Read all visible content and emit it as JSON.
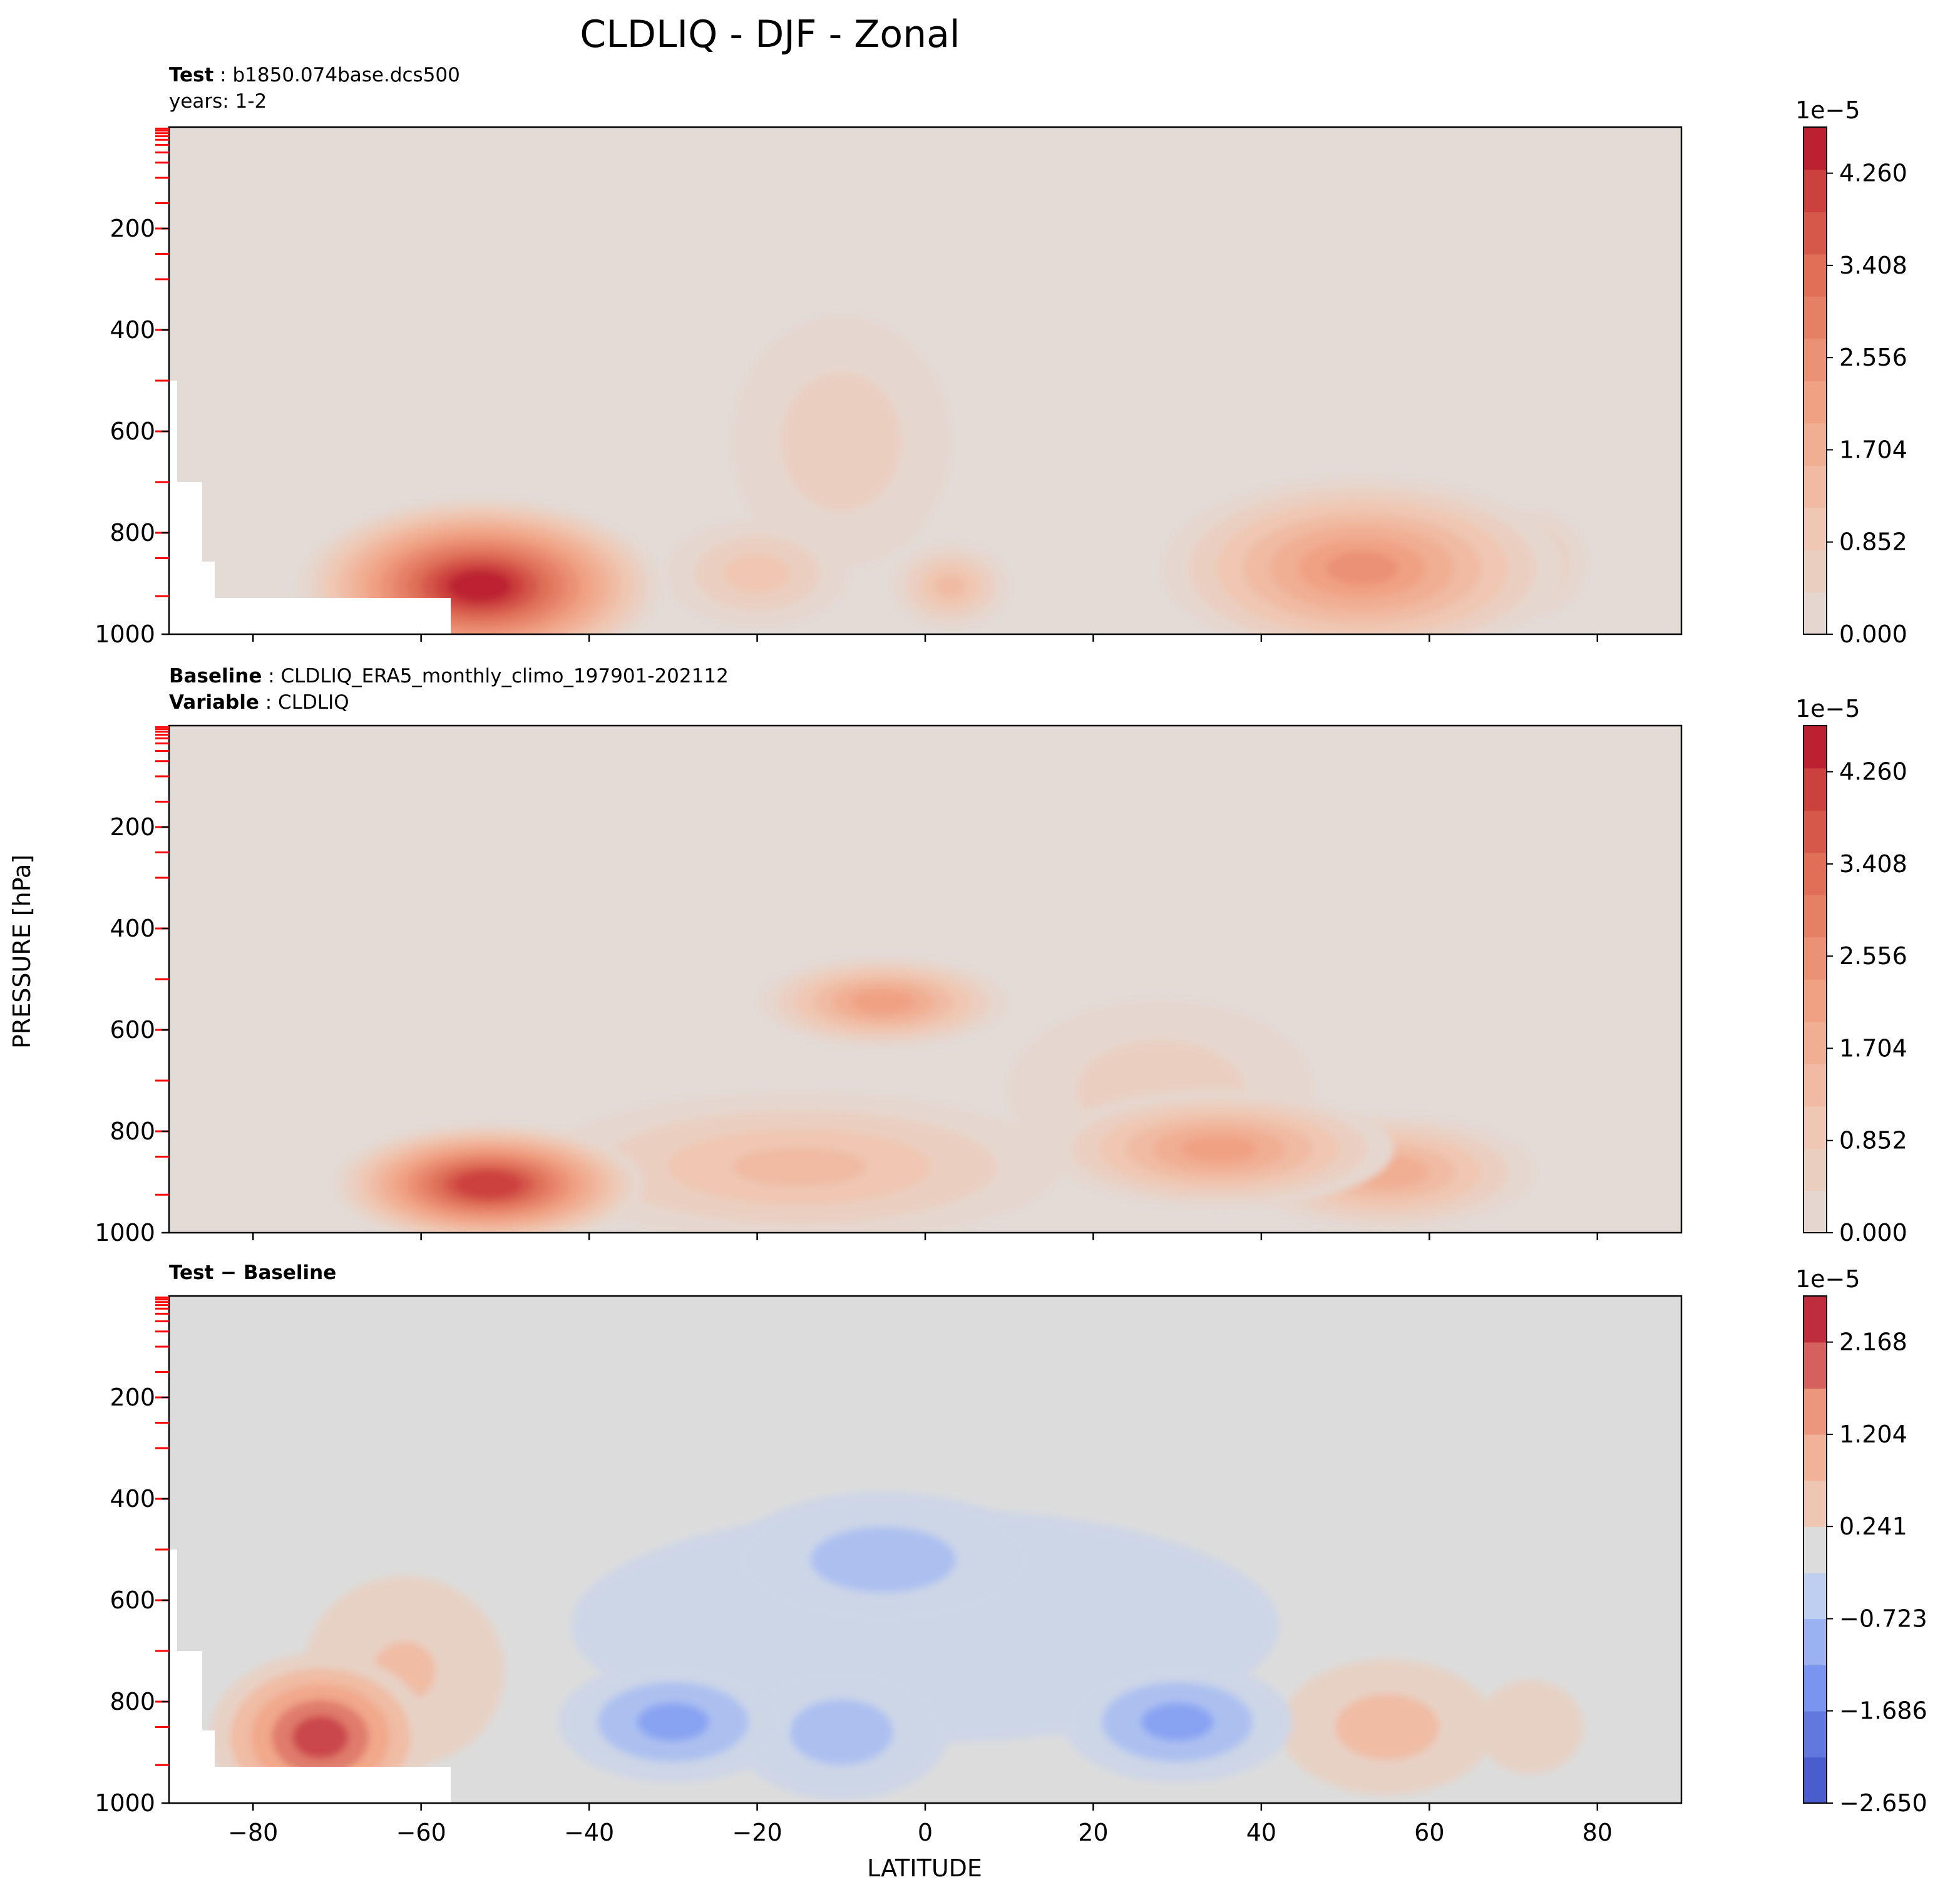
{
  "figure_title": "CLDLIQ - DJF - Zonal",
  "chart_data": [
    {
      "type": "heatmap",
      "panel": "test",
      "header_lines": [
        {
          "bold": "Test",
          "text": "b1850.074base.dcs500"
        },
        {
          "bold": "",
          "text": "years: 1-2"
        }
      ],
      "xlim": [
        -90,
        90
      ],
      "ylim": [
        1000,
        0
      ],
      "y_ticks": [
        200,
        400,
        600,
        800,
        1000
      ],
      "colorbar": {
        "exponent": "1e−5",
        "min": 0.0,
        "max": 4.686,
        "levels": 12,
        "tick_labels": [
          "4.260",
          "3.408",
          "2.556",
          "1.704",
          "0.852",
          "0.000"
        ],
        "tick_values": [
          4.26,
          3.408,
          2.556,
          1.704,
          0.852,
          0.0
        ]
      },
      "features": [
        {
          "lat": -53,
          "p": 905,
          "value": 4.6,
          "wlat": 14,
          "wp": 130
        },
        {
          "lat": 52,
          "p": 870,
          "value": 2.6,
          "wlat": 16,
          "wp": 140
        },
        {
          "lat": 3,
          "p": 905,
          "value": 1.5,
          "wlat": 5,
          "wp": 70
        },
        {
          "lat": -20,
          "p": 880,
          "value": 1.2,
          "wlat": 8,
          "wp": 90
        },
        {
          "lat": 72,
          "p": 860,
          "value": 1.2,
          "wlat": 5,
          "wp": 90
        },
        {
          "lat": -10,
          "p": 620,
          "value": 0.9,
          "wlat": 10,
          "wp": 220
        }
      ]
    },
    {
      "type": "heatmap",
      "panel": "baseline",
      "header_lines": [
        {
          "bold": "Baseline",
          "text": "CLDLIQ_ERA5_monthly_climo_197901-202112"
        },
        {
          "bold": "Variable",
          "text": "CLDLIQ"
        }
      ],
      "xlim": [
        -90,
        90
      ],
      "ylim": [
        1000,
        0
      ],
      "y_ticks": [
        200,
        400,
        600,
        800,
        1000
      ],
      "colorbar": {
        "exponent": "1e−5",
        "min": 0.0,
        "max": 4.686,
        "levels": 12,
        "tick_labels": [
          "4.260",
          "3.408",
          "2.556",
          "1.704",
          "0.852",
          "0.000"
        ],
        "tick_values": [
          4.26,
          3.408,
          2.556,
          1.704,
          0.852,
          0.0
        ]
      },
      "features": [
        {
          "lat": -52,
          "p": 905,
          "value": 4.4,
          "wlat": 12,
          "wp": 90
        },
        {
          "lat": -5,
          "p": 545,
          "value": 2.4,
          "wlat": 10,
          "wp": 70
        },
        {
          "lat": 35,
          "p": 835,
          "value": 2.3,
          "wlat": 14,
          "wp": 90
        },
        {
          "lat": 55,
          "p": 880,
          "value": 2.0,
          "wlat": 12,
          "wp": 90
        },
        {
          "lat": -15,
          "p": 870,
          "value": 1.5,
          "wlat": 22,
          "wp": 120
        },
        {
          "lat": 28,
          "p": 720,
          "value": 0.9,
          "wlat": 14,
          "wp": 160
        }
      ]
    },
    {
      "type": "heatmap",
      "panel": "difference",
      "header_lines": [
        {
          "bold": "Test − Baseline",
          "text": ""
        }
      ],
      "xlim": [
        -90,
        90
      ],
      "ylim": [
        1000,
        0
      ],
      "y_ticks": [
        200,
        400,
        600,
        800,
        1000
      ],
      "colorbar": {
        "exponent": "1e−5",
        "min": -2.65,
        "max": 2.65,
        "levels": 11,
        "tick_labels": [
          "2.168",
          "1.204",
          "0.241",
          "−0.723",
          "−1.686",
          "−2.650"
        ],
        "tick_values": [
          2.168,
          1.204,
          0.241,
          -0.723,
          -1.686,
          -2.65
        ]
      },
      "features": [
        {
          "lat": -72,
          "p": 870,
          "value": 2.4,
          "wlat": 9,
          "wp": 130
        },
        {
          "lat": -62,
          "p": 740,
          "value": 0.8,
          "wlat": 10,
          "wp": 180
        },
        {
          "lat": 55,
          "p": 850,
          "value": 1.0,
          "wlat": 10,
          "wp": 120
        },
        {
          "lat": 72,
          "p": 850,
          "value": 0.6,
          "wlat": 6,
          "wp": 100
        },
        {
          "lat": -30,
          "p": 840,
          "value": -1.4,
          "wlat": 10,
          "wp": 100
        },
        {
          "lat": 30,
          "p": 840,
          "value": -1.4,
          "wlat": 10,
          "wp": 100
        },
        {
          "lat": -10,
          "p": 860,
          "value": -1.0,
          "wlat": 10,
          "wp": 120
        },
        {
          "lat": -5,
          "p": 520,
          "value": -1.0,
          "wlat": 14,
          "wp": 120
        },
        {
          "lat": 0,
          "p": 650,
          "value": -0.6,
          "wlat": 40,
          "wp": 250
        }
      ]
    }
  ],
  "x_ticks": [
    -80,
    -60,
    -40,
    -20,
    0,
    20,
    40,
    60,
    80
  ],
  "xlabel": "LATITUDE",
  "ylabel": "PRESSURE [hPa]",
  "colors": {
    "seq_bg": "#e2dbd6",
    "div_bg": "#dcdcdc",
    "level_marker": "#ff0000"
  }
}
